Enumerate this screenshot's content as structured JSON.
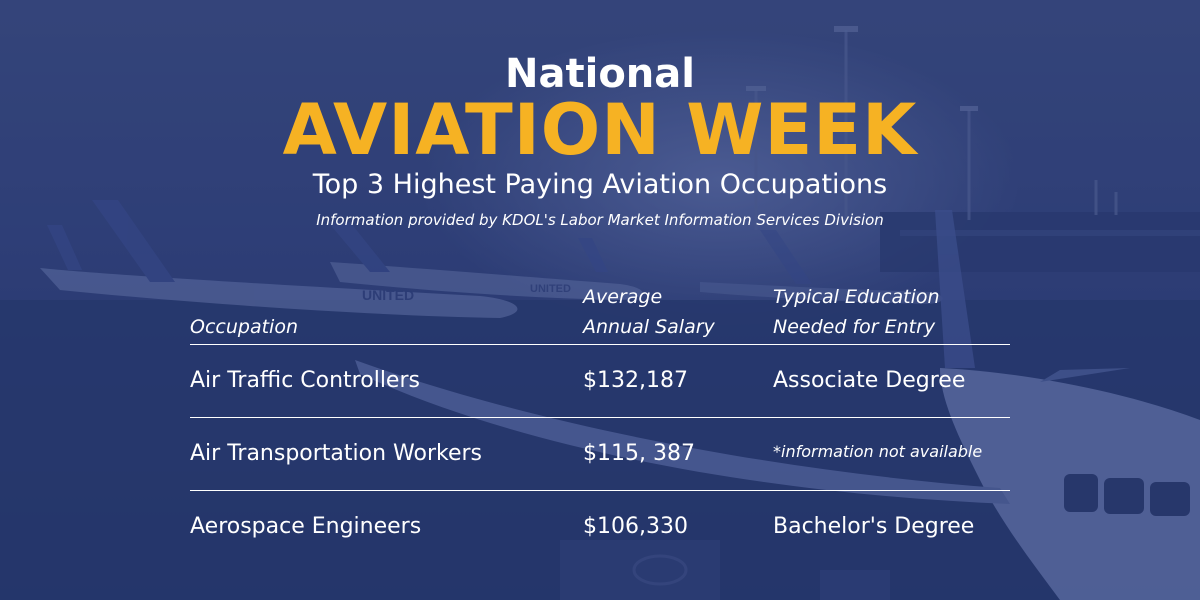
{
  "header": {
    "line1": "National",
    "line2": "AVIATION WEEK",
    "subtitle": "Top 3 Highest Paying Aviation Occupations",
    "source": "Information provided by KDOL's Labor Market Information Services Division"
  },
  "table": {
    "columns": {
      "occupation": "Occupation",
      "salary_line1": "Average",
      "salary_line2": "Annual Salary",
      "education_line1": "Typical Education",
      "education_line2": "Needed for Entry"
    },
    "rows": [
      {
        "occupation": "Air Traffic Controllers",
        "salary": "$132,187",
        "education": "Associate Degree"
      },
      {
        "occupation": "Air Transportation Workers",
        "salary": "$115, 387",
        "education": "*information not available"
      },
      {
        "occupation": "Aerospace Engineers",
        "salary": "$106,330",
        "education": "Bachelor's Degree"
      }
    ]
  },
  "background": {
    "airline_livery_text": "UNITED"
  },
  "colors": {
    "accent_yellow": "#f6b223",
    "overlay_blue": "#2c3d78",
    "text_white": "#ffffff"
  }
}
